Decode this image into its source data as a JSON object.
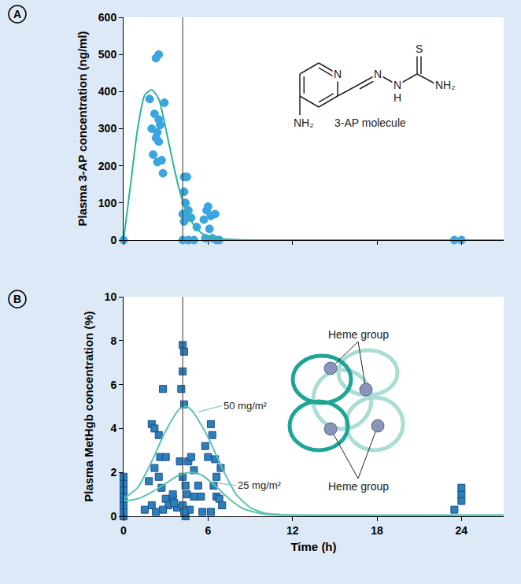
{
  "chart_data": [
    {
      "type": "scatter",
      "label": "A",
      "y_title": "Plasma 3-AP concentration (ng/ml)",
      "xlim": [
        0,
        27
      ],
      "xticks": [
        0,
        6,
        12,
        18,
        24
      ],
      "ylim": [
        0,
        600
      ],
      "yticks": [
        0,
        100,
        200,
        300,
        400,
        500,
        600
      ],
      "tick_labels": "y",
      "vline": 4.2,
      "series": [
        {
          "type": "scatter",
          "color": "#3aa5e0",
          "marker": "circle",
          "x": [
            0,
            1.85,
            2.0,
            2.1,
            2.2,
            2.3,
            2.5,
            2.3,
            2.4,
            2.5,
            2.6,
            2.4,
            2.7,
            2.9,
            2.8,
            2.5,
            4.3,
            4.5,
            4.3,
            4.4,
            4.2,
            4.3,
            4.5,
            4.8,
            4.2,
            4.6,
            5.0,
            5.2,
            4.6,
            5.7,
            5.9,
            6.0,
            6.2,
            6.5,
            6.1,
            6.3,
            6.6,
            6.8,
            5.8,
            23.5,
            24.0
          ],
          "values": [
            0,
            380,
            300,
            230,
            340,
            490,
            500,
            275,
            290,
            265,
            310,
            210,
            215,
            370,
            180,
            325,
            170,
            170,
            130,
            100,
            70,
            50,
            60,
            60,
            0,
            0,
            0,
            35,
            80,
            55,
            80,
            90,
            65,
            70,
            30,
            5,
            0,
            0,
            5,
            0,
            0
          ]
        },
        {
          "type": "line",
          "color": "#2bb3a3",
          "x": [
            0,
            0.5,
            1,
            1.5,
            2,
            2.5,
            3,
            3.5,
            4,
            4.5,
            5,
            5.5,
            6,
            7,
            8,
            10,
            27
          ],
          "values": [
            0,
            150,
            300,
            390,
            405,
            380,
            300,
            210,
            130,
            75,
            40,
            20,
            10,
            3,
            1,
            0,
            0
          ]
        }
      ],
      "inset": {
        "atoms": [
          "N",
          "N",
          "N",
          "H",
          "S",
          "NH₂",
          "NH₂"
        ],
        "caption": "3-AP molecule"
      }
    },
    {
      "type": "scatter",
      "label": "B",
      "x_title": "Time (h)",
      "y_title": "Plasma MetHgb concentration (%)",
      "xlim": [
        0,
        27
      ],
      "xticks": [
        0,
        6,
        12,
        18,
        24
      ],
      "ylim": [
        0,
        10
      ],
      "yticks": [
        0,
        2,
        4,
        6,
        8,
        10
      ],
      "vline": 4.2,
      "series": [
        {
          "type": "scatter",
          "color": "#2d7fb8",
          "marker": "square",
          "x": [
            0,
            0,
            0,
            0,
            0,
            0,
            0,
            0,
            2.0,
            2.2,
            2.5,
            2.8,
            2.2,
            2.6,
            3.0,
            2.5,
            2.7,
            3.0,
            3.2,
            2.8,
            3.5,
            3.8,
            2.0,
            2.3,
            1.5,
            1.8,
            3.5,
            3.6,
            4.2,
            4.3,
            4.2,
            4.1,
            4.3,
            4.0,
            4.2,
            4.4,
            4.6,
            4.8,
            4.5,
            4.2,
            4.4,
            4.7,
            5.0,
            5.3,
            5.0,
            4.3,
            5.5,
            5.6,
            5.8,
            6.2,
            6.3,
            6.0,
            6.5,
            6.4,
            6.6,
            6.8,
            6.6,
            7.0,
            6.2,
            6.9,
            23.5,
            24,
            24,
            24
          ],
          "values": [
            0,
            0.2,
            0.5,
            0.8,
            1.0,
            1.2,
            1.5,
            1.8,
            4.2,
            4.0,
            3.7,
            5.8,
            2.2,
            2.7,
            2.7,
            1.8,
            1.3,
            0.8,
            0.5,
            0.3,
            0.8,
            0.4,
            0.5,
            0.2,
            0.3,
            1.6,
            1.0,
            0.6,
            7.8,
            7.5,
            6.6,
            5.8,
            5.1,
            2.5,
            1.8,
            1.4,
            2.5,
            2.7,
            1.0,
            0.5,
            0.0,
            0.3,
            0.9,
            1.4,
            2.1,
            0.2,
            0.9,
            0.2,
            3.2,
            4.2,
            3.7,
            2.7,
            2.6,
            1.4,
            0.9,
            0.8,
            1.8,
            0.5,
            0.2,
            2.2,
            0.3,
            0.7,
            1.0,
            1.3
          ]
        },
        {
          "type": "line",
          "name": "50 mg/m²",
          "color": "#5cc2b6",
          "x": [
            0,
            1,
            2,
            3,
            4,
            4.5,
            5,
            6,
            7,
            8,
            9,
            10,
            12,
            27
          ],
          "values": [
            0.8,
            1.3,
            2.5,
            3.9,
            4.9,
            5.0,
            4.7,
            3.6,
            2.2,
            1.0,
            0.4,
            0.15,
            0.05,
            0.05
          ]
        },
        {
          "type": "line",
          "name": "25 mg/m²",
          "color": "#5cc2b6",
          "x": [
            0,
            1,
            2,
            3,
            4,
            4.8,
            5.5,
            6.5,
            7.5,
            8.5,
            10,
            12,
            27
          ],
          "values": [
            0.7,
            0.8,
            1.1,
            1.5,
            1.9,
            2.0,
            1.9,
            1.4,
            0.8,
            0.35,
            0.1,
            0.05,
            0.05
          ]
        }
      ],
      "inset": {
        "labels": [
          "Heme group",
          "Heme group"
        ]
      }
    }
  ]
}
